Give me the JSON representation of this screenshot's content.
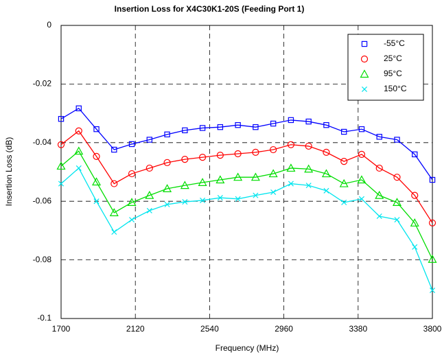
{
  "chart_data": {
    "type": "line",
    "title": "Insertion Loss for X4C30K1-20S (Feeding Port 1)",
    "x_label": "Frequency (MHz)",
    "y_label": "Insertion Loss (dB)",
    "x": [
      1700,
      1800,
      1900,
      2000,
      2100,
      2200,
      2300,
      2400,
      2500,
      2600,
      2700,
      2800,
      2900,
      3000,
      3100,
      3200,
      3300,
      3400,
      3500,
      3600,
      3700,
      3800
    ],
    "series": [
      {
        "name": "-55°C",
        "color": "#0000ff",
        "marker": "square",
        "values": [
          -0.0319,
          -0.0283,
          -0.0354,
          -0.0424,
          -0.0405,
          -0.039,
          -0.0372,
          -0.0358,
          -0.035,
          -0.0347,
          -0.034,
          -0.0347,
          -0.0335,
          -0.0323,
          -0.0328,
          -0.034,
          -0.0363,
          -0.0354,
          -0.038,
          -0.039,
          -0.044,
          -0.0527
        ]
      },
      {
        "name": "25°C",
        "color": "#ff0000",
        "marker": "circle",
        "values": [
          -0.0407,
          -0.036,
          -0.0447,
          -0.054,
          -0.0506,
          -0.0487,
          -0.0468,
          -0.0457,
          -0.045,
          -0.0443,
          -0.0438,
          -0.0433,
          -0.0424,
          -0.0407,
          -0.0412,
          -0.0433,
          -0.0464,
          -0.044,
          -0.0487,
          -0.0518,
          -0.058,
          -0.0674
        ]
      },
      {
        "name": "95°C",
        "color": "#00dd00",
        "marker": "triangle",
        "values": [
          -0.048,
          -0.0429,
          -0.0534,
          -0.0639,
          -0.0604,
          -0.058,
          -0.0557,
          -0.0546,
          -0.0536,
          -0.0527,
          -0.0518,
          -0.0518,
          -0.0506,
          -0.0487,
          -0.049,
          -0.0506,
          -0.054,
          -0.0527,
          -0.058,
          -0.0604,
          -0.0674,
          -0.0798
        ]
      },
      {
        "name": "150°C",
        "color": "#00e5ee",
        "marker": "x",
        "values": [
          -0.054,
          -0.0487,
          -0.06,
          -0.0705,
          -0.0663,
          -0.0632,
          -0.0611,
          -0.0602,
          -0.0597,
          -0.0588,
          -0.0592,
          -0.058,
          -0.0569,
          -0.054,
          -0.0546,
          -0.0564,
          -0.0604,
          -0.0592,
          -0.0651,
          -0.0663,
          -0.0756,
          -0.0904
        ]
      }
    ],
    "xlim": [
      1700,
      3800
    ],
    "xticks": [
      1700,
      2120,
      2540,
      2960,
      3380,
      3800
    ],
    "ylim": [
      -0.1,
      0
    ],
    "yticks": [
      0,
      -0.02,
      -0.04,
      -0.06,
      -0.08,
      -0.1
    ],
    "grid": true,
    "legend": "upper right"
  }
}
